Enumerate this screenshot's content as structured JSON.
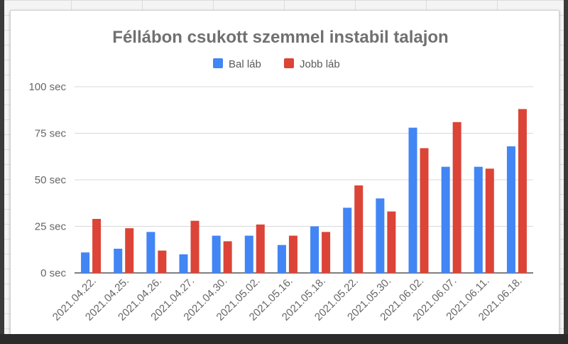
{
  "chart_data": {
    "type": "bar",
    "title": "Féllábon csukott szemmel instabil talajon",
    "categories": [
      "2021.04.22.",
      "2021.04.25.",
      "2021.04.26.",
      "2021.04.27.",
      "2021.04.30.",
      "2021.05.02.",
      "2021.05.16.",
      "2021.05.18.",
      "2021.05.22.",
      "2021.05.30.",
      "2021.06.02.",
      "2021.06.07.",
      "2021.06.11.",
      "2021.06.18."
    ],
    "series": [
      {
        "name": "Bal láb",
        "color": "#4285f4",
        "values": [
          11,
          13,
          22,
          10,
          20,
          20,
          15,
          25,
          35,
          40,
          78,
          57,
          57,
          68
        ]
      },
      {
        "name": "Jobb láb",
        "color": "#db4437",
        "values": [
          29,
          24,
          12,
          28,
          17,
          26,
          20,
          22,
          47,
          33,
          67,
          81,
          56,
          88
        ]
      }
    ],
    "ylim": [
      0,
      100
    ],
    "yticks": [
      0,
      25,
      50,
      75,
      100
    ],
    "ytick_labels": [
      "0 sec",
      "25 sec",
      "50 sec",
      "75 sec",
      "100 sec"
    ],
    "xlabel": "",
    "ylabel": "",
    "grid": true,
    "legend_position": "top-center"
  }
}
